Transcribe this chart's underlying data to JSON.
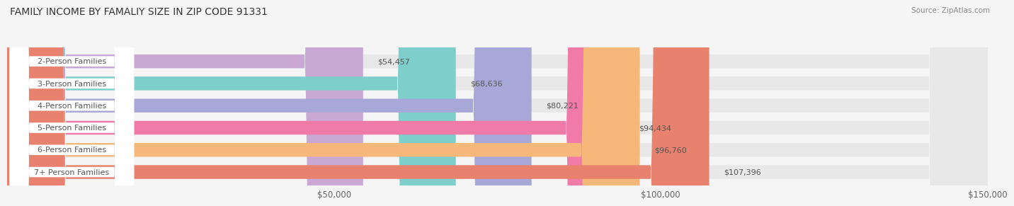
{
  "title": "FAMILY INCOME BY FAMALIY SIZE IN ZIP CODE 91331",
  "source": "Source: ZipAtlas.com",
  "categories": [
    "2-Person Families",
    "3-Person Families",
    "4-Person Families",
    "5-Person Families",
    "6-Person Families",
    "7+ Person Families"
  ],
  "values": [
    54457,
    68636,
    80221,
    94434,
    96760,
    107396
  ],
  "bar_colors": [
    "#c9a8d4",
    "#7ecfcb",
    "#a8a8d8",
    "#f07aa8",
    "#f5b87a",
    "#e8826e"
  ],
  "xlim": [
    0,
    150000
  ],
  "xtick_labels": [
    "$50,000",
    "$100,000",
    "$150,000"
  ],
  "xtick_values": [
    50000,
    100000,
    150000
  ],
  "value_labels": [
    "$54,457",
    "$68,636",
    "$80,221",
    "$94,434",
    "$96,760",
    "$107,396"
  ],
  "background_color": "#f5f5f5",
  "bar_bg_color": "#e8e8e8",
  "title_fontsize": 10,
  "bar_height": 0.62,
  "label_fontsize": 8.0,
  "value_fontsize": 8.0
}
